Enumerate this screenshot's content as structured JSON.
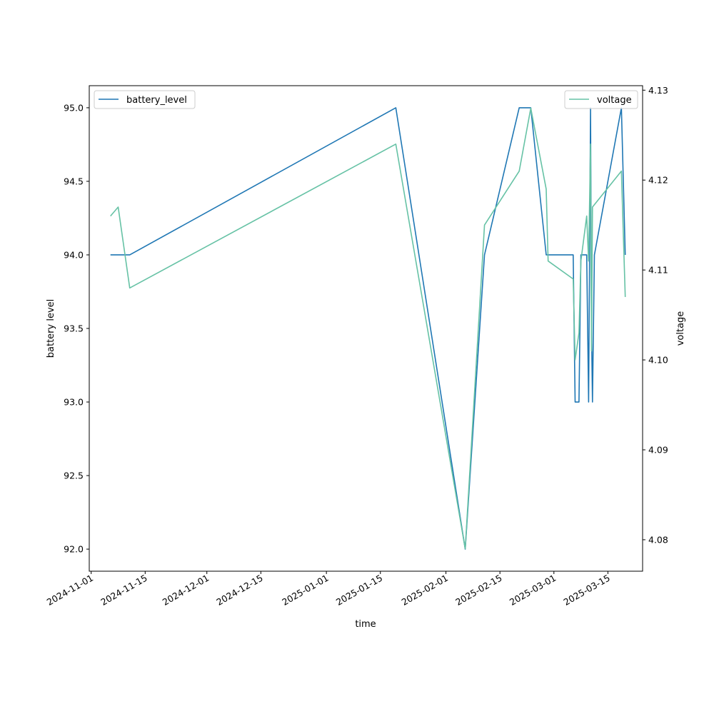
{
  "chart_data": {
    "type": "line",
    "title": "",
    "xlabel": "time",
    "ylabel_left": "battery level",
    "ylabel_right": "voltage",
    "x_ticks": [
      "2024-11-01",
      "2024-11-15",
      "2024-12-01",
      "2024-12-15",
      "2025-01-01",
      "2025-01-15",
      "2025-02-01",
      "2025-02-15",
      "2025-03-01",
      "2025-03-15"
    ],
    "x_range": [
      "2024-10-31T12:00",
      "2025-03-24"
    ],
    "y_left_ticks": [
      "92.0",
      "92.5",
      "93.0",
      "93.5",
      "94.0",
      "94.5",
      "95.0"
    ],
    "y_left_range": [
      91.85,
      95.15
    ],
    "y_right_ticks": [
      "4.08",
      "4.09",
      "4.10",
      "4.11",
      "4.12",
      "4.13"
    ],
    "y_right_range": [
      4.0765,
      4.1305
    ],
    "grid": false,
    "series": [
      {
        "name": "battery_level",
        "axis": "left",
        "color": "#1f77b4",
        "legend_position": "upper-left",
        "points": [
          [
            "2024-11-06",
            94.0
          ],
          [
            "2024-11-08",
            94.0
          ],
          [
            "2024-11-11",
            94.0
          ],
          [
            "2025-01-19",
            95.0
          ],
          [
            "2025-02-06",
            92.0
          ],
          [
            "2025-02-11",
            94.0
          ],
          [
            "2025-02-20",
            95.0
          ],
          [
            "2025-02-23",
            95.0
          ],
          [
            "2025-02-27",
            94.0
          ],
          [
            "2025-03-06",
            94.0
          ],
          [
            "2025-03-06T12:00",
            93.0
          ],
          [
            "2025-03-07T12:00",
            93.0
          ],
          [
            "2025-03-08",
            94.0
          ],
          [
            "2025-03-09T12:00",
            94.0
          ],
          [
            "2025-03-10",
            93.0
          ],
          [
            "2025-03-10T12:00",
            95.0
          ],
          [
            "2025-03-10T18:00",
            93.5
          ],
          [
            "2025-03-11",
            93.0
          ],
          [
            "2025-03-11T12:00",
            94.0
          ],
          [
            "2025-03-18T12:00",
            95.0
          ],
          [
            "2025-03-19T12:00",
            94.0
          ]
        ]
      },
      {
        "name": "voltage",
        "axis": "right",
        "color": "#66c2a5",
        "legend_position": "upper-right",
        "points": [
          [
            "2024-11-06",
            4.116
          ],
          [
            "2024-11-08",
            4.117
          ],
          [
            "2024-11-11",
            4.108
          ],
          [
            "2025-01-19",
            4.124
          ],
          [
            "2025-02-06",
            4.079
          ],
          [
            "2025-02-11",
            4.115
          ],
          [
            "2025-02-20",
            4.121
          ],
          [
            "2025-02-23",
            4.128
          ],
          [
            "2025-02-27",
            4.119
          ],
          [
            "2025-02-27T12:00",
            4.111
          ],
          [
            "2025-03-06",
            4.109
          ],
          [
            "2025-03-06T12:00",
            4.1
          ],
          [
            "2025-03-07T12:00",
            4.103
          ],
          [
            "2025-03-08",
            4.111
          ],
          [
            "2025-03-09T12:00",
            4.116
          ],
          [
            "2025-03-10",
            4.111
          ],
          [
            "2025-03-10T12:00",
            4.124
          ],
          [
            "2025-03-10T18:00",
            4.101
          ],
          [
            "2025-03-11",
            4.117
          ],
          [
            "2025-03-18T12:00",
            4.121
          ],
          [
            "2025-03-19T12:00",
            4.107
          ]
        ]
      }
    ]
  }
}
